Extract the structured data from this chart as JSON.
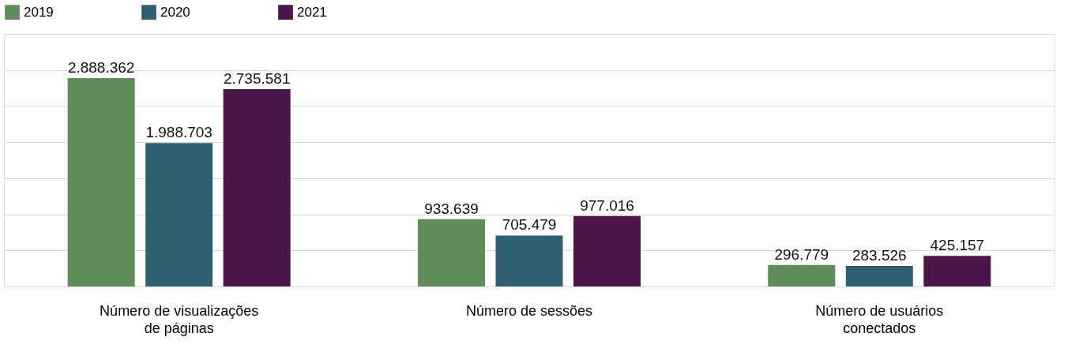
{
  "chart_data": {
    "type": "bar",
    "categories": [
      "Número de visualizações\nde páginas",
      "Número de sessões",
      "Número de usuários\nconectados"
    ],
    "series": [
      {
        "name": "2019",
        "color": "#5e8c5a",
        "values": [
          2888362,
          933639,
          296779
        ],
        "value_labels": [
          "2.888.362",
          "933.639",
          "296.779"
        ]
      },
      {
        "name": "2020",
        "color": "#2f6072",
        "values": [
          1988703,
          705479,
          283526
        ],
        "value_labels": [
          "1.988.703",
          "705.479",
          "283.526"
        ]
      },
      {
        "name": "2021",
        "color": "#4b1547",
        "values": [
          2735581,
          977016,
          425157
        ],
        "value_labels": [
          "2.735.581",
          "977.016",
          "425.157"
        ]
      }
    ],
    "ylim": [
      0,
      3500000
    ],
    "yticks": [
      {
        "value": 0,
        "label": null
      },
      {
        "value": 500000,
        "label": null
      },
      {
        "value": 1000000,
        "label": null
      },
      {
        "value": 1500000,
        "label": null
      },
      {
        "value": 2000000,
        "label": null
      },
      {
        "value": 2500000,
        "label": null
      },
      {
        "value": 3000000,
        "label": null
      },
      {
        "value": 3500000,
        "label": null
      }
    ],
    "tick_labels": "x",
    "grid": "y",
    "legend": "top"
  }
}
